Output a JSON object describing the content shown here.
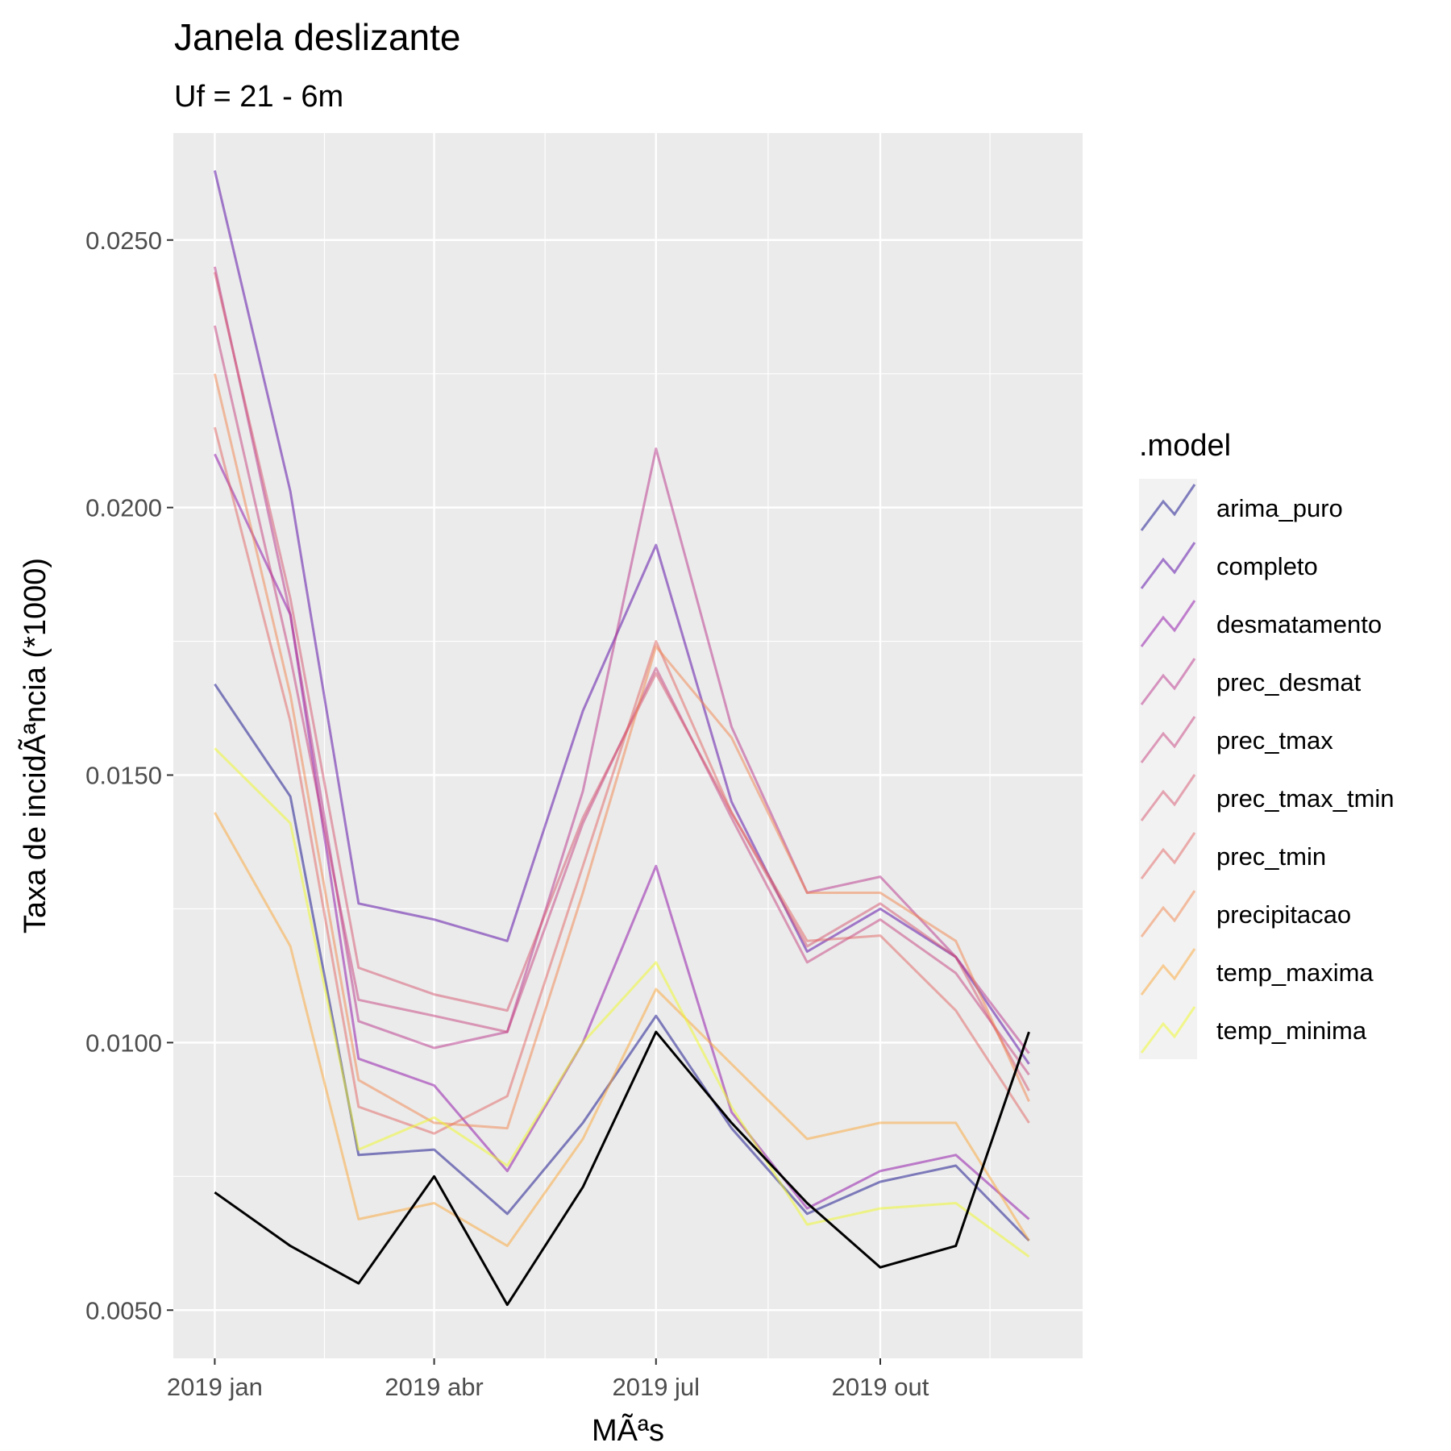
{
  "chart_data": {
    "type": "line",
    "title": "Janela deslizante",
    "subtitle": "Uf = 21 - 6m",
    "xlabel": "MÃªs",
    "ylabel": "Taxa de incidÃªncia (*1000)",
    "x": [
      "2019-01",
      "2019-02",
      "2019-03",
      "2019-04",
      "2019-05",
      "2019-06",
      "2019-07",
      "2019-08",
      "2019-09",
      "2019-10",
      "2019-11",
      "2019-12"
    ],
    "x_ticks": [
      {
        "x": "2019-01",
        "label": "2019 jan"
      },
      {
        "x": "2019-04",
        "label": "2019 abr"
      },
      {
        "x": "2019-07",
        "label": "2019 jul"
      },
      {
        "x": "2019-10",
        "label": "2019 out"
      }
    ],
    "y_ticks": [
      {
        "value": 0.005,
        "label": "0.0050"
      },
      {
        "value": 0.01,
        "label": "0.0100"
      },
      {
        "value": 0.015,
        "label": "0.0150"
      },
      {
        "value": 0.02,
        "label": "0.0200"
      },
      {
        "value": 0.025,
        "label": "0.0250"
      }
    ],
    "xlim": [
      "2018-12-15",
      "2019-12-23"
    ],
    "ylim": [
      0.0041,
      0.027
    ],
    "grid": true,
    "legend": {
      "title": ".model",
      "position": "right"
    },
    "observed": {
      "color": "#000000",
      "values": [
        0.0072,
        0.0062,
        0.0055,
        0.0075,
        0.0051,
        0.0073,
        0.0102,
        0.0085,
        0.007,
        0.0058,
        0.0062,
        0.0102
      ]
    },
    "series": [
      {
        "name": "arima_puro",
        "color": "#0d0887",
        "values": [
          0.0167,
          0.0146,
          0.0079,
          0.008,
          0.0068,
          0.0085,
          0.0105,
          0.0084,
          0.0068,
          0.0074,
          0.0077,
          0.0063
        ]
      },
      {
        "name": "completo",
        "color": "#5302a3",
        "values": [
          0.0263,
          0.0203,
          0.0126,
          0.0123,
          0.0119,
          0.0162,
          0.0193,
          0.0145,
          0.0117,
          0.0125,
          0.0116,
          0.0096
        ]
      },
      {
        "name": "desmatamento",
        "color": "#8b0aa5",
        "values": [
          0.021,
          0.018,
          0.0097,
          0.0092,
          0.0076,
          0.01,
          0.0133,
          0.0087,
          0.0069,
          0.0076,
          0.0079,
          0.0067
        ]
      },
      {
        "name": "prec_desmat",
        "color": "#b83289",
        "values": [
          0.0245,
          0.018,
          0.0104,
          0.0099,
          0.0102,
          0.0147,
          0.0211,
          0.0159,
          0.0128,
          0.0131,
          0.0116,
          0.0098
        ]
      },
      {
        "name": "prec_tmax",
        "color": "#c5407e",
        "values": [
          0.0234,
          0.0172,
          0.0108,
          0.0105,
          0.0102,
          0.0141,
          0.017,
          0.0142,
          0.0115,
          0.0123,
          0.0113,
          0.0094
        ]
      },
      {
        "name": "prec_tmax_tmin",
        "color": "#d5546e",
        "values": [
          0.0244,
          0.0183,
          0.0114,
          0.0109,
          0.0106,
          0.0142,
          0.0169,
          0.0143,
          0.0118,
          0.0126,
          0.0116,
          0.0091
        ]
      },
      {
        "name": "prec_tmin",
        "color": "#e16462",
        "values": [
          0.0215,
          0.016,
          0.0088,
          0.0083,
          0.009,
          0.0133,
          0.0175,
          0.0143,
          0.0119,
          0.012,
          0.0106,
          0.0085
        ]
      },
      {
        "name": "precipitacao",
        "color": "#f2844b",
        "values": [
          0.0225,
          0.0165,
          0.0093,
          0.0085,
          0.0084,
          0.0128,
          0.0174,
          0.0157,
          0.0128,
          0.0128,
          0.0119,
          0.0089
        ]
      },
      {
        "name": "temp_maxima",
        "color": "#fca636",
        "values": [
          0.0143,
          0.0118,
          0.0067,
          0.007,
          0.0062,
          0.0082,
          0.011,
          0.0096,
          0.0082,
          0.0085,
          0.0085,
          0.0063
        ]
      },
      {
        "name": "temp_minima",
        "color": "#f0f921",
        "values": [
          0.0155,
          0.0141,
          0.008,
          0.0086,
          0.0077,
          0.01,
          0.0115,
          0.0088,
          0.0066,
          0.0069,
          0.007,
          0.006
        ]
      }
    ]
  }
}
